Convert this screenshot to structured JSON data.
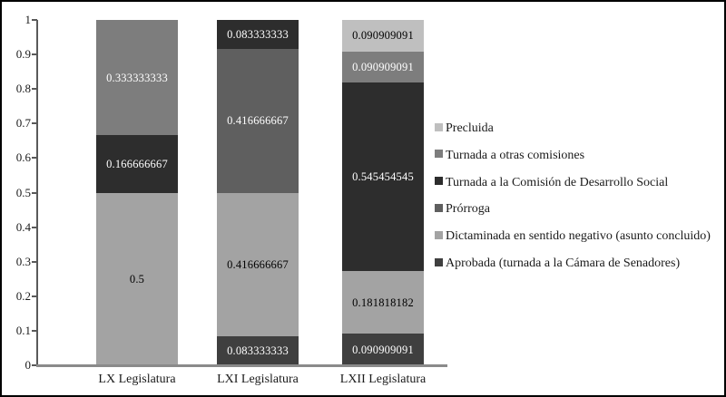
{
  "chart_data": {
    "type": "bar",
    "subtype": "stacked-100",
    "title": "",
    "xlabel": "",
    "ylabel": "",
    "ylim": [
      0,
      1
    ],
    "y_tick_labels": [
      "1",
      "0.9",
      "0.8",
      "0.7",
      "0.6",
      "0.5",
      "0.4",
      "0.3",
      "0.2",
      "0.1",
      "0"
    ],
    "grid": "off",
    "legend_position": "right",
    "categories": [
      "LX Legislatura",
      "LXI Legislatura",
      "LXII Legislatura"
    ],
    "series": [
      {
        "name": "Aprobada (turnada a la Cámara de Senadores)",
        "color": "#3f3f3f",
        "label_color": "#ffffff",
        "values": [
          0,
          0.083333333,
          0.090909091
        ],
        "labels": [
          "",
          "0.083333333",
          "0.090909091"
        ]
      },
      {
        "name": "Dictaminada en sentido negativo (asunto concluido)",
        "color": "#a3a3a3",
        "label_color": "#000000",
        "values": [
          0.5,
          0.416666667,
          0.181818182
        ],
        "labels": [
          "0.5",
          "0.416666667",
          "0.181818182"
        ]
      },
      {
        "name": "Prórroga",
        "color": "#5f5f5f",
        "label_color": "#ffffff",
        "values": [
          0,
          0.416666667,
          0
        ],
        "labels": [
          "",
          "0.416666667",
          ""
        ]
      },
      {
        "name": "Turnada a la Comisión de Desarrollo Social",
        "color": "#2d2d2d",
        "label_color": "#ffffff",
        "values": [
          0.166666667,
          0.083333333,
          0.545454545
        ],
        "labels": [
          "0.166666667",
          "0.083333333",
          "0.545454545"
        ]
      },
      {
        "name": "Turnada a otras comisiones",
        "color": "#7d7d7d",
        "label_color": "#ffffff",
        "values": [
          0.333333333,
          0,
          0.090909091
        ],
        "labels": [
          "0.333333333",
          "",
          "0.090909091"
        ]
      },
      {
        "name": "Precluida",
        "color": "#bfbfbf",
        "label_color": "#000000",
        "values": [
          0,
          0,
          0.090909091
        ],
        "labels": [
          "",
          "",
          "0.090909091"
        ]
      }
    ],
    "legend": [
      {
        "label": "Precluida",
        "color": "#bfbfbf"
      },
      {
        "label": "Turnada a otras comisiones",
        "color": "#7d7d7d"
      },
      {
        "label": "Turnada a la Comisión de Desarrollo Social",
        "color": "#2d2d2d"
      },
      {
        "label": "Prórroga",
        "color": "#5f5f5f"
      },
      {
        "label": "Dictaminada en sentido negativo (asunto concluido)",
        "color": "#a3a3a3"
      },
      {
        "label": "Aprobada (turnada a la Cámara de Senadores)",
        "color": "#3f3f3f"
      }
    ]
  }
}
